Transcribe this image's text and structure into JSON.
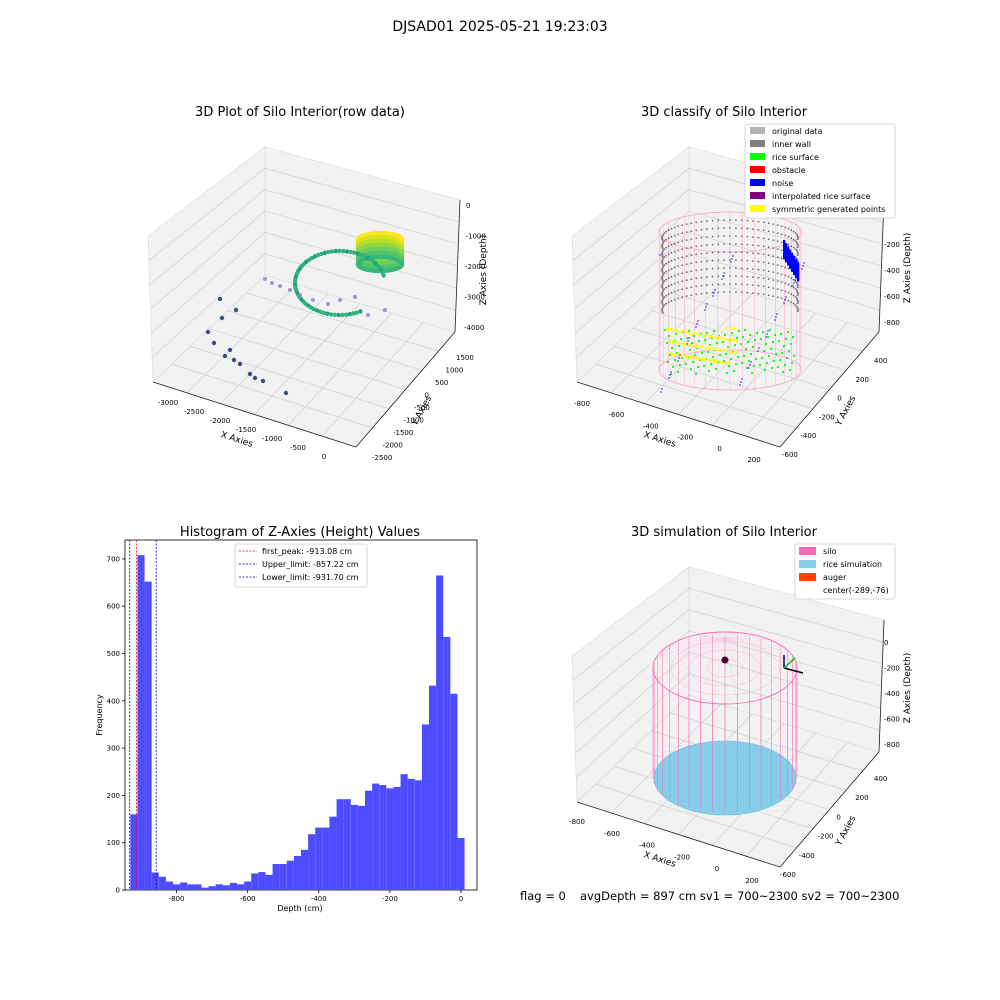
{
  "suptitle": "DJSAD01 2025-05-21 19:23:03",
  "footer": {
    "flag": "flag = 0",
    "stats": "avgDepth = 897 cm  sv1 = 700~2300  sv2 = 700~2300"
  },
  "colors": {
    "hist_bar": "#4d4dff",
    "first_peak": "#ff0000",
    "limit_line": "#0000aa",
    "silo": "#ff69b4",
    "rice_sim": "#87ceeb",
    "auger": "#ff4500",
    "grid_plane": "#f2f2f2"
  },
  "chart_data": [
    {
      "type": "scatter",
      "title": "3D Plot of Silo Interior(row data)",
      "xlabel": "X Axies",
      "ylabel": "Y Axies",
      "zlabel": "Z Axies (Depth)",
      "x_ticks": [
        "-3000",
        "-2500",
        "-2000",
        "-1500",
        "-1000",
        "-500",
        "0"
      ],
      "y_ticks": [
        "-2500",
        "-2000",
        "-1500",
        "-1000",
        "-500",
        "0",
        "500",
        "1000",
        "1500"
      ],
      "z_ticks": [
        "0",
        "-1000",
        "-2000",
        "-3000",
        "-4000"
      ],
      "grid": true
    },
    {
      "type": "scatter",
      "title": "3D classify of Silo Interior",
      "xlabel": "X Axies",
      "ylabel": "Y Axies",
      "zlabel": "Z Axies (Depth)",
      "x_ticks": [
        "-800",
        "-600",
        "-400",
        "-200",
        "0",
        "200"
      ],
      "y_ticks": [
        "-600",
        "-400",
        "-200",
        "0",
        "200",
        "400"
      ],
      "z_ticks": [
        "-200",
        "-400",
        "-600",
        "-800"
      ],
      "legend": [
        {
          "label": "original data",
          "color": "#b3b3b3"
        },
        {
          "label": "inner wall",
          "color": "#808080"
        },
        {
          "label": "rice surface",
          "color": "#00ff00"
        },
        {
          "label": "obstacle",
          "color": "#ff0000"
        },
        {
          "label": "noise",
          "color": "#0000ff"
        },
        {
          "label": "interpolated rice surface",
          "color": "#800080"
        },
        {
          "label": "symmetric generated points",
          "color": "#ffff00"
        }
      ],
      "legend_position": "top-right",
      "grid": true
    },
    {
      "type": "bar",
      "title": "Histogram of Z-Axies (Height) Values",
      "xlabel": "Depth (cm)",
      "ylabel": "Frequency",
      "xlim": [
        -945,
        45
      ],
      "ylim": [
        0,
        740
      ],
      "x_ticks": [
        -800,
        -600,
        -400,
        -200,
        0
      ],
      "y_ticks": [
        0,
        100,
        200,
        300,
        400,
        500,
        600,
        700
      ],
      "bin_width": 20,
      "bin_starts": [
        -930,
        -910,
        -890,
        -870,
        -850,
        -830,
        -810,
        -790,
        -770,
        -750,
        -730,
        -710,
        -690,
        -670,
        -650,
        -630,
        -610,
        -590,
        -570,
        -550,
        -530,
        -510,
        -490,
        -470,
        -450,
        -430,
        -410,
        -390,
        -370,
        -350,
        -330,
        -310,
        -290,
        -270,
        -250,
        -230,
        -210,
        -190,
        -170,
        -150,
        -130,
        -110,
        -90,
        -70,
        -50,
        -30,
        -10
      ],
      "counts": [
        160,
        708,
        652,
        37,
        28,
        18,
        12,
        16,
        12,
        12,
        5,
        8,
        12,
        10,
        15,
        12,
        18,
        35,
        38,
        32,
        55,
        55,
        62,
        72,
        85,
        118,
        132,
        132,
        155,
        192,
        192,
        180,
        178,
        210,
        225,
        222,
        215,
        218,
        245,
        235,
        232,
        350,
        432,
        665,
        535,
        415,
        110
      ],
      "vlines": [
        {
          "label": "first_peak: -913.08 cm",
          "x": -913.08,
          "color": "#ff0000"
        },
        {
          "label": "Upper_limit: -857.22 cm",
          "x": -857.22,
          "color": "#0000aa"
        },
        {
          "label": "Lower_limit: -931.70 cm",
          "x": -931.7,
          "color": "#0000aa"
        }
      ],
      "legend_position": "top-center",
      "grid": false
    },
    {
      "type": "scatter",
      "title": "3D simulation of Silo Interior",
      "xlabel": "X Axies",
      "ylabel": "Y Axies",
      "zlabel": "Z Axies (Depth)",
      "x_ticks": [
        "-800",
        "-600",
        "-400",
        "-200",
        "0",
        "200"
      ],
      "y_ticks": [
        "-600",
        "-400",
        "-200",
        "0",
        "200",
        "400"
      ],
      "z_ticks": [
        "0",
        "-200",
        "-400",
        "-600",
        "-800"
      ],
      "legend": [
        {
          "label": "silo",
          "color": "#ff69b4"
        },
        {
          "label": "rice simulation",
          "color": "#87ceeb"
        },
        {
          "label": "auger",
          "color": "#ff4500"
        },
        {
          "label": "center(-289,-76)",
          "color": ""
        }
      ],
      "legend_position": "top-right",
      "grid": true
    }
  ]
}
